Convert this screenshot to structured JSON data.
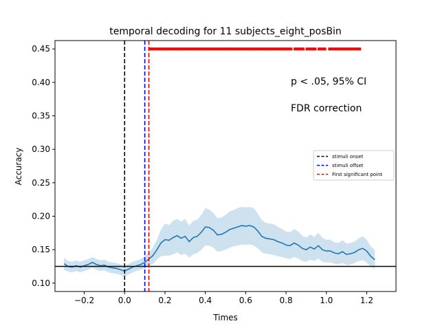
{
  "chart_data": {
    "type": "line",
    "title": "temporal decoding for 11 subjects_eight_posBin",
    "xlabel": "Times",
    "ylabel": "Accuracy",
    "xlim": [
      -0.345,
      1.345
    ],
    "ylim": [
      0.0875,
      0.4625
    ],
    "xticks": [
      -0.2,
      0.0,
      0.2,
      0.4,
      0.6,
      0.8,
      1.0,
      1.2
    ],
    "xtick_labels": [
      "−0.2",
      "0.0",
      "0.2",
      "0.4",
      "0.6",
      "0.8",
      "1.0",
      "1.2"
    ],
    "yticks": [
      0.1,
      0.15,
      0.2,
      0.25,
      0.3,
      0.35,
      0.4,
      0.45
    ],
    "ytick_labels": [
      "0.10",
      "0.15",
      "0.20",
      "0.25",
      "0.30",
      "0.35",
      "0.40",
      "0.45"
    ],
    "grid": false,
    "annotations": [
      "p < .05, 95% CI",
      "FDR correction"
    ],
    "legend": {
      "position": "right",
      "entries": [
        {
          "label": "stimuli onset",
          "color": "#000000",
          "style": "dashed"
        },
        {
          "label": "stimuli offset",
          "color": "#0000ff",
          "style": "dashed"
        },
        {
          "label": "First significant point",
          "color": "#ff0000",
          "style": "dashed"
        }
      ]
    },
    "series": [
      {
        "color": "#1f77b4",
        "ci_color": "#1f77b4",
        "x": [
          -0.3,
          -0.28,
          -0.26,
          -0.24,
          -0.22,
          -0.2,
          -0.18,
          -0.16,
          -0.14,
          -0.12,
          -0.1,
          -0.08,
          -0.06,
          -0.04,
          -0.02,
          0.0,
          0.02,
          0.04,
          0.06,
          0.08,
          0.1,
          0.12,
          0.14,
          0.16,
          0.18,
          0.2,
          0.22,
          0.24,
          0.26,
          0.28,
          0.3,
          0.32,
          0.34,
          0.36,
          0.38,
          0.4,
          0.42,
          0.44,
          0.46,
          0.48,
          0.5,
          0.52,
          0.54,
          0.56,
          0.58,
          0.6,
          0.62,
          0.64,
          0.66,
          0.68,
          0.7,
          0.72,
          0.74,
          0.76,
          0.78,
          0.8,
          0.82,
          0.84,
          0.86,
          0.88,
          0.9,
          0.92,
          0.94,
          0.96,
          0.98,
          1.0,
          1.02,
          1.04,
          1.06,
          1.08,
          1.1,
          1.12,
          1.14,
          1.16,
          1.18,
          1.2,
          1.22,
          1.24
        ],
        "y": [
          0.129,
          0.125,
          0.124,
          0.126,
          0.124,
          0.126,
          0.128,
          0.131,
          0.128,
          0.126,
          0.127,
          0.124,
          0.123,
          0.122,
          0.12,
          0.118,
          0.121,
          0.124,
          0.126,
          0.128,
          0.131,
          0.136,
          0.141,
          0.15,
          0.16,
          0.165,
          0.164,
          0.168,
          0.171,
          0.167,
          0.17,
          0.162,
          0.168,
          0.17,
          0.176,
          0.184,
          0.183,
          0.179,
          0.172,
          0.173,
          0.176,
          0.18,
          0.182,
          0.184,
          0.186,
          0.185,
          0.186,
          0.184,
          0.178,
          0.17,
          0.167,
          0.166,
          0.165,
          0.162,
          0.16,
          0.157,
          0.156,
          0.16,
          0.157,
          0.152,
          0.15,
          0.154,
          0.151,
          0.156,
          0.15,
          0.148,
          0.148,
          0.145,
          0.144,
          0.147,
          0.143,
          0.144,
          0.146,
          0.15,
          0.152,
          0.148,
          0.14,
          0.135
        ],
        "ci_lower": [
          0.12,
          0.117,
          0.116,
          0.118,
          0.116,
          0.118,
          0.12,
          0.123,
          0.12,
          0.118,
          0.119,
          0.116,
          0.115,
          0.114,
          0.112,
          0.11,
          0.113,
          0.116,
          0.118,
          0.12,
          0.122,
          0.126,
          0.129,
          0.135,
          0.14,
          0.141,
          0.141,
          0.143,
          0.146,
          0.142,
          0.144,
          0.138,
          0.143,
          0.145,
          0.15,
          0.156,
          0.156,
          0.153,
          0.147,
          0.148,
          0.15,
          0.153,
          0.155,
          0.156,
          0.158,
          0.157,
          0.158,
          0.156,
          0.152,
          0.146,
          0.144,
          0.143,
          0.142,
          0.14,
          0.139,
          0.137,
          0.136,
          0.139,
          0.137,
          0.133,
          0.132,
          0.135,
          0.133,
          0.137,
          0.132,
          0.131,
          0.131,
          0.129,
          0.128,
          0.13,
          0.127,
          0.128,
          0.13,
          0.133,
          0.134,
          0.131,
          0.125,
          0.121
        ],
        "ci_upper": [
          0.138,
          0.133,
          0.132,
          0.134,
          0.132,
          0.134,
          0.136,
          0.139,
          0.136,
          0.134,
          0.135,
          0.132,
          0.131,
          0.13,
          0.128,
          0.126,
          0.129,
          0.132,
          0.134,
          0.136,
          0.14,
          0.146,
          0.153,
          0.165,
          0.18,
          0.189,
          0.187,
          0.193,
          0.196,
          0.192,
          0.196,
          0.186,
          0.193,
          0.195,
          0.202,
          0.212,
          0.21,
          0.205,
          0.197,
          0.198,
          0.202,
          0.207,
          0.209,
          0.212,
          0.214,
          0.213,
          0.214,
          0.212,
          0.204,
          0.194,
          0.19,
          0.189,
          0.188,
          0.184,
          0.181,
          0.177,
          0.176,
          0.181,
          0.177,
          0.171,
          0.168,
          0.173,
          0.169,
          0.175,
          0.168,
          0.165,
          0.165,
          0.161,
          0.16,
          0.164,
          0.159,
          0.16,
          0.162,
          0.167,
          0.17,
          0.165,
          0.155,
          0.149
        ]
      }
    ],
    "reference_lines": [
      {
        "kind": "hline",
        "y": 0.125,
        "color": "#000000",
        "style": "solid"
      },
      {
        "kind": "vline",
        "x": 0.0,
        "color": "#000000",
        "style": "dashed"
      },
      {
        "kind": "vline",
        "x": 0.1,
        "color": "#0000ff",
        "style": "dashed"
      },
      {
        "kind": "vline",
        "x": 0.12,
        "color": "#ff0000",
        "style": "dashed"
      }
    ],
    "significance_markers": {
      "y": 0.45,
      "color": "#ff0000",
      "x_start": 0.12,
      "x_end": 1.17,
      "gaps": [
        [
          0.83,
          0.84
        ],
        [
          0.89,
          0.9
        ],
        [
          0.95,
          0.96
        ],
        [
          1.0,
          1.01
        ]
      ]
    }
  }
}
